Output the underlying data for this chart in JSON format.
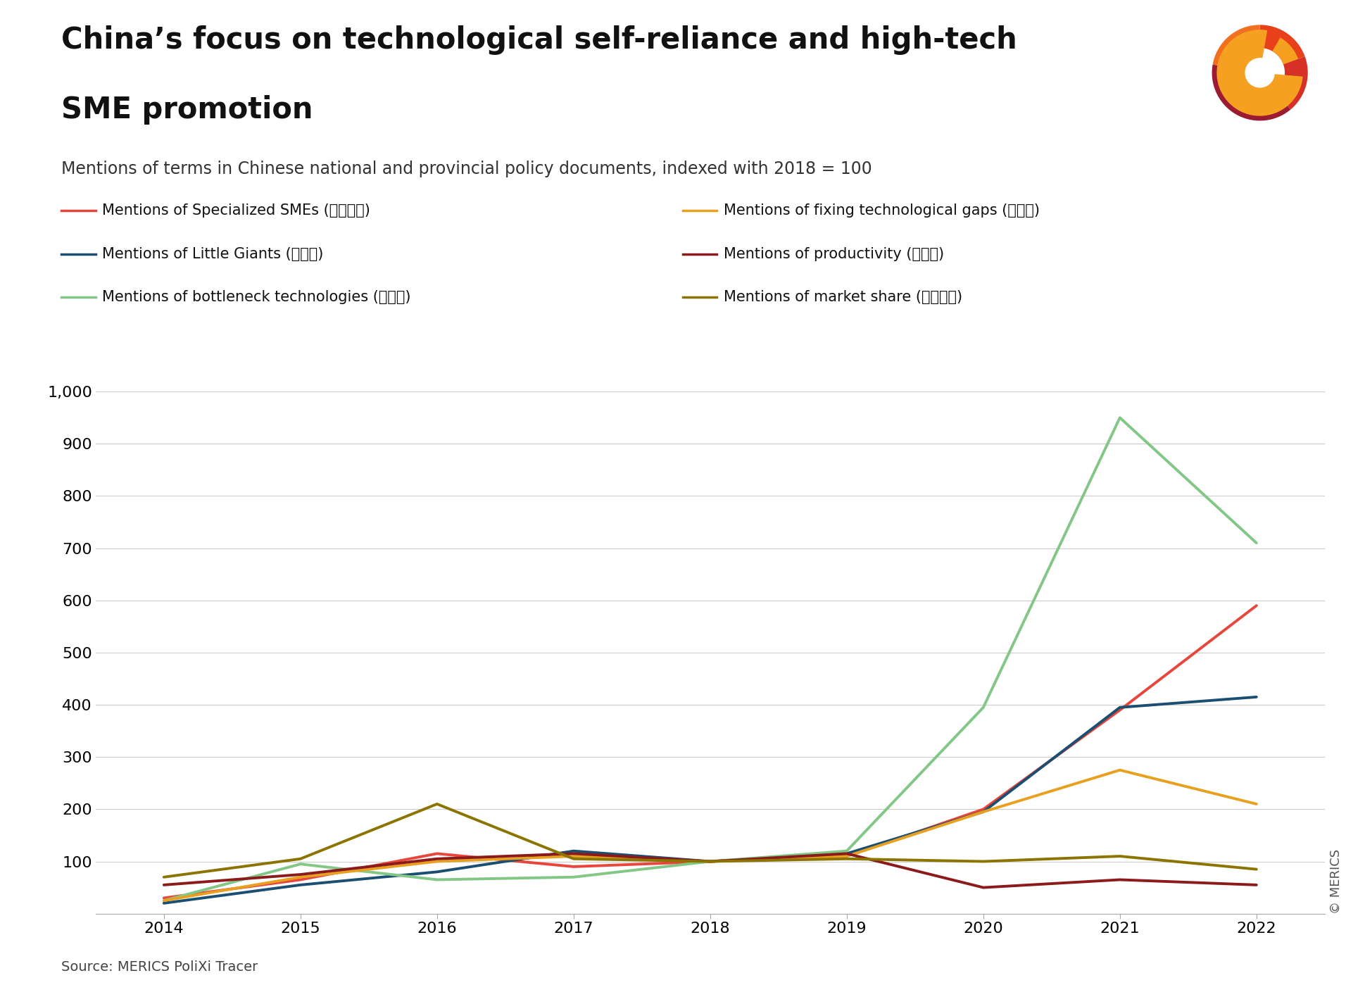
{
  "title_line1": "China’s focus on technological self-reliance and high-tech",
  "title_line2": "SME promotion",
  "subtitle": "Mentions of terms in Chinese national and provincial policy documents, indexed with 2018 = 100",
  "source": "Source: MERICS PoliXi Tracer",
  "copyright": "© MERICS",
  "years": [
    2014,
    2015,
    2016,
    2017,
    2018,
    2019,
    2020,
    2021,
    2022
  ],
  "series": {
    "specialized_smes": {
      "label": "Mentions of Specialized SMEs (专精特新)",
      "color": "#E8453C",
      "linewidth": 2.8,
      "values": [
        30,
        65,
        115,
        90,
        100,
        110,
        200,
        390,
        590
      ]
    },
    "little_giants": {
      "label": "Mentions of Little Giants (小巨人)",
      "color": "#1B4F72",
      "linewidth": 2.8,
      "values": [
        20,
        55,
        80,
        120,
        100,
        115,
        195,
        395,
        415
      ]
    },
    "bottleneck_tech": {
      "label": "Mentions of bottleneck technologies (卡讯子)",
      "color": "#82C785",
      "linewidth": 2.8,
      "values": [
        25,
        95,
        65,
        70,
        100,
        120,
        395,
        950,
        710
      ]
    },
    "fixing_gaps": {
      "label": "Mentions of fixing technological gaps (补短板)",
      "color": "#E8A020",
      "linewidth": 2.8,
      "values": [
        25,
        70,
        100,
        110,
        100,
        110,
        195,
        275,
        210
      ]
    },
    "productivity": {
      "label": "Mentions of productivity (生产率)",
      "color": "#8B1A1A",
      "linewidth": 2.8,
      "values": [
        55,
        75,
        105,
        115,
        100,
        115,
        50,
        65,
        55
      ]
    },
    "market_share": {
      "label": "Mentions of market share (市场份额)",
      "color": "#8B7500",
      "linewidth": 2.8,
      "values": [
        70,
        105,
        210,
        105,
        100,
        105,
        100,
        110,
        85
      ]
    }
  },
  "ylim": [
    0,
    1000
  ],
  "yticks": [
    0,
    100,
    200,
    300,
    400,
    500,
    600,
    700,
    800,
    900,
    1000
  ],
  "ytick_labels": [
    "",
    "100",
    "200",
    "300",
    "400",
    "500",
    "600",
    "700",
    "800",
    "900",
    "1,000"
  ],
  "background_color": "#FFFFFF",
  "grid_color": "#CCCCCC",
  "title_fontsize": 30,
  "subtitle_fontsize": 17,
  "legend_fontsize": 15,
  "tick_fontsize": 16,
  "source_fontsize": 14
}
